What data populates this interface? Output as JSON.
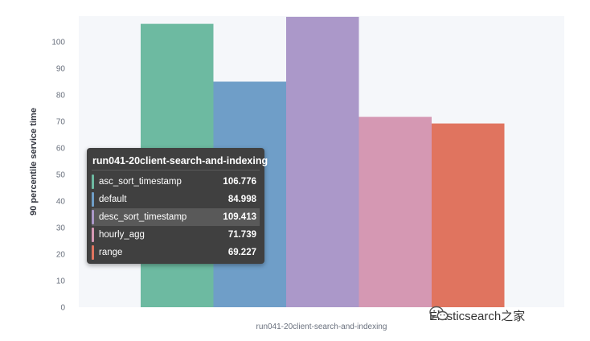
{
  "chart_data": {
    "type": "bar",
    "categories": [
      "run041-20client-search-and-indexing"
    ],
    "series": [
      {
        "name": "asc_sort_timestamp",
        "values": [
          106.776
        ],
        "color": "#6dbaa1"
      },
      {
        "name": "default",
        "values": [
          84.998
        ],
        "color": "#6f9ec8"
      },
      {
        "name": "desc_sort_timestamp",
        "values": [
          109.413
        ],
        "color": "#ab98c9"
      },
      {
        "name": "hourly_agg",
        "values": [
          71.739
        ],
        "color": "#d598b3"
      },
      {
        "name": "range",
        "values": [
          69.227
        ],
        "color": "#e0745f"
      }
    ],
    "title": "",
    "xlabel": "run041-20client-search-and-indexing",
    "ylabel": "90 percentile service time",
    "ylim": [
      0,
      110
    ],
    "yticks": [
      0,
      10,
      20,
      30,
      40,
      50,
      60,
      70,
      80,
      90,
      100
    ],
    "grid": false,
    "legend": "none"
  },
  "tooltip": {
    "title": "run041-20client-search-and-indexing",
    "rows": [
      {
        "label": "asc_sort_timestamp",
        "value": "106.776",
        "color": "#6dbaa1"
      },
      {
        "label": "default",
        "value": "84.998",
        "color": "#6f9ec8"
      },
      {
        "label": "desc_sort_timestamp",
        "value": "109.413",
        "color": "#ab98c9"
      },
      {
        "label": "hourly_agg",
        "value": "71.739",
        "color": "#d598b3"
      },
      {
        "label": "range",
        "value": "69.227",
        "color": "#e0745f"
      }
    ],
    "highlighted": "desc_sort_timestamp"
  },
  "watermark": {
    "text": "Elasticsearch之家",
    "icon": "wechat-icon"
  },
  "colors": {
    "plot_background": "#f5f7fa"
  }
}
